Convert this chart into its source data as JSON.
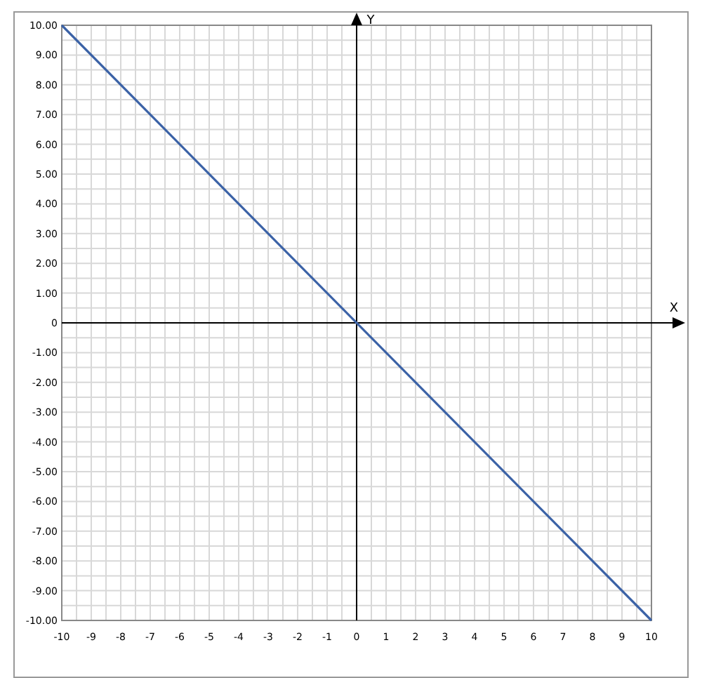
{
  "chart_data": {
    "type": "line",
    "xlabel": "X",
    "ylabel": "Y",
    "x": [
      -10,
      10
    ],
    "series": [
      {
        "color": "#3b62a6",
        "values": [
          10,
          -10
        ]
      }
    ],
    "xlim": [
      -10,
      10
    ],
    "ylim": [
      -10,
      10
    ],
    "xticks": [
      -10,
      -9,
      -8,
      -7,
      -6,
      -5,
      -4,
      -3,
      -2,
      -1,
      0,
      1,
      2,
      3,
      4,
      5,
      6,
      7,
      8,
      9,
      10
    ],
    "yticks": [
      {
        "value": 10,
        "label": "10.00"
      },
      {
        "value": 9,
        "label": "9.00"
      },
      {
        "value": 8,
        "label": "8.00"
      },
      {
        "value": 7,
        "label": "7.00"
      },
      {
        "value": 6,
        "label": "6.00"
      },
      {
        "value": 5,
        "label": "5.00"
      },
      {
        "value": 4,
        "label": "4.00"
      },
      {
        "value": 3,
        "label": "3.00"
      },
      {
        "value": 2,
        "label": "2.00"
      },
      {
        "value": 1,
        "label": "1.00"
      },
      0,
      {
        "value": -1,
        "label": "-1.00"
      },
      {
        "value": -2,
        "label": "-2.00"
      },
      {
        "value": -3,
        "label": "-3.00"
      },
      {
        "value": -4,
        "label": "-4.00"
      },
      {
        "value": -5,
        "label": "-5.00"
      },
      {
        "value": -6,
        "label": "-6.00"
      },
      {
        "value": -7,
        "label": "-7.00"
      },
      {
        "value": -8,
        "label": "-8.00"
      },
      {
        "value": -9,
        "label": "-9.00"
      },
      {
        "value": -10,
        "label": "-10.00"
      }
    ],
    "grid": true,
    "marker": "none",
    "line_style": "solid"
  }
}
